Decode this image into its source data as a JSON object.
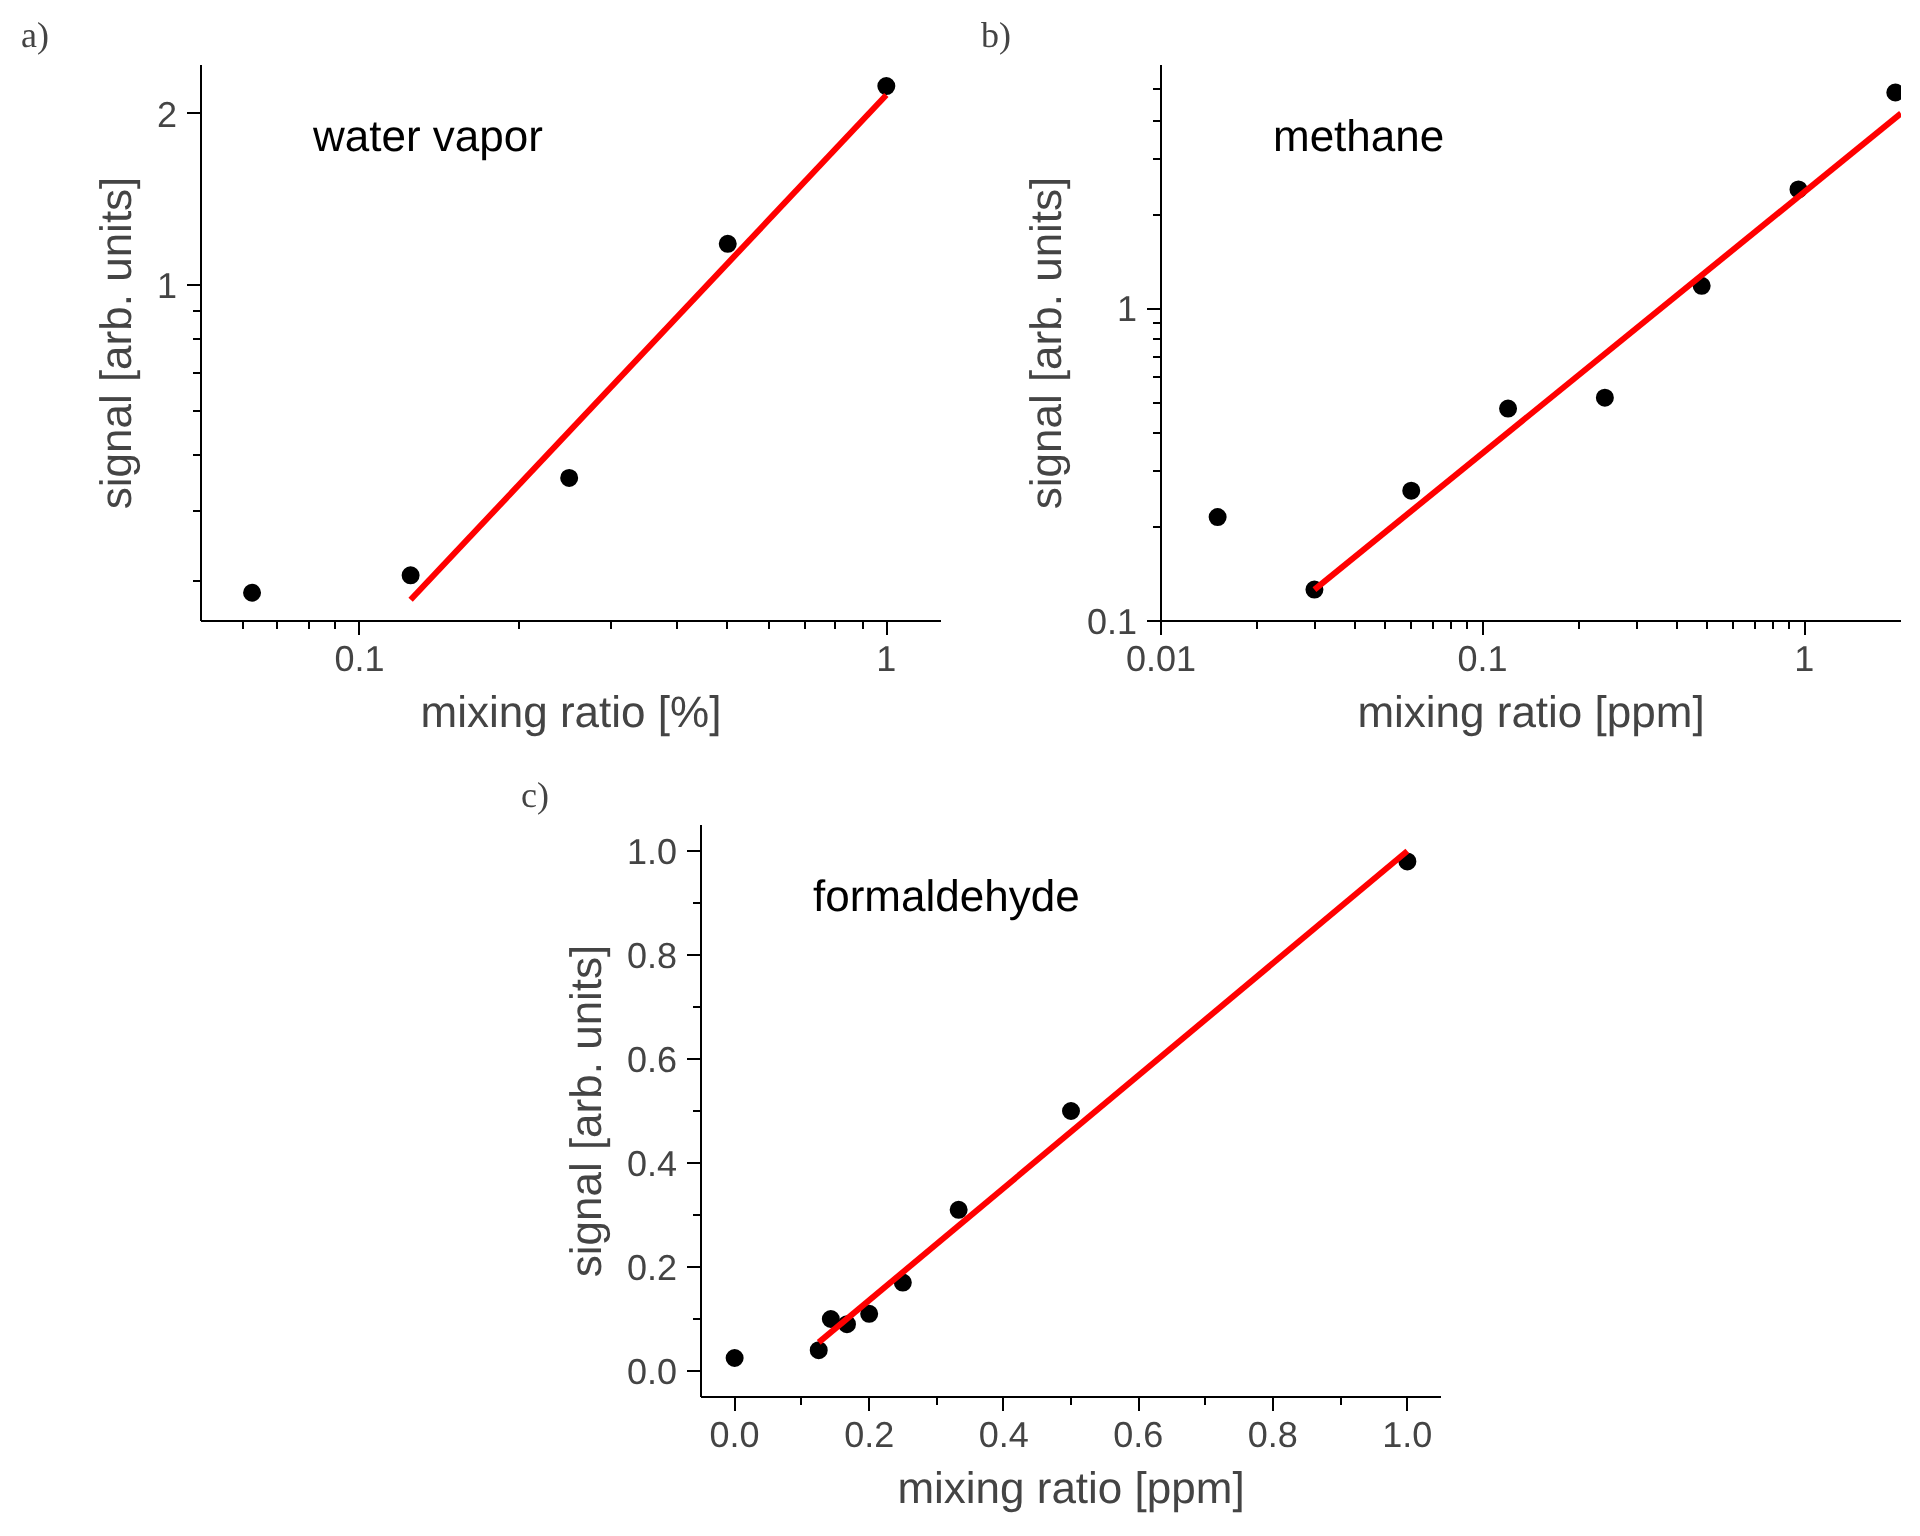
{
  "chart_data": [
    {
      "type": "scatter",
      "title": "a)",
      "xlabel": "mixing ratio [%]",
      "ylabel": "signal [arb. units]",
      "log": "xy",
      "grid": false,
      "annotations": [
        "water vapor"
      ],
      "xlim": [
        0.05,
        1.27
      ],
      "ylim": [
        0.255,
        2.44
      ],
      "xticks": [
        {
          "value": 0.06,
          "label": null
        },
        {
          "value": 0.07,
          "label": null
        },
        {
          "value": 0.08,
          "label": null
        },
        {
          "value": 0.09,
          "label": null
        },
        0.1,
        {
          "value": 0.2,
          "label": null
        },
        {
          "value": 0.3,
          "label": null
        },
        {
          "value": 0.4,
          "label": null
        },
        {
          "value": 0.5,
          "label": null
        },
        {
          "value": 0.6,
          "label": null
        },
        {
          "value": 0.7,
          "label": null
        },
        {
          "value": 0.8,
          "label": null
        },
        {
          "value": 0.9,
          "label": null
        },
        1
      ],
      "yticks": [
        {
          "value": 0.3,
          "label": null
        },
        {
          "value": 0.4,
          "label": null
        },
        {
          "value": 0.5,
          "label": null
        },
        {
          "value": 0.6,
          "label": null
        },
        {
          "value": 0.7,
          "label": null
        },
        {
          "value": 0.8,
          "label": null
        },
        {
          "value": 0.9,
          "label": null
        },
        1,
        2
      ],
      "series": [
        {
          "marker": "circle",
          "color": "#000000",
          "x": [
            0.0625,
            0.125,
            0.25,
            0.5,
            1
          ],
          "values": [
            0.286,
            0.307,
            0.456,
            1.18,
            2.24
          ]
        },
        {
          "type": "line",
          "marker": "none",
          "color": "#ff0000",
          "x": [
            0.125,
            1
          ],
          "values": [
            0.278,
            2.16
          ]
        }
      ]
    },
    {
      "type": "scatter",
      "title": "b)",
      "xlabel": "mixing ratio [ppm]",
      "ylabel": "signal [arb. units]",
      "log": "xy",
      "grid": false,
      "annotations": [
        "methane"
      ],
      "xlim": [
        0.01,
        2.0
      ],
      "ylim": [
        0.1,
        6
      ],
      "xticks": [
        0.01,
        {
          "value": 0.02,
          "label": null
        },
        {
          "value": 0.03,
          "label": null
        },
        {
          "value": 0.04,
          "label": null
        },
        {
          "value": 0.05,
          "label": null
        },
        {
          "value": 0.06,
          "label": null
        },
        {
          "value": 0.07,
          "label": null
        },
        {
          "value": 0.08,
          "label": null
        },
        {
          "value": 0.09,
          "label": null
        },
        0.1,
        {
          "value": 0.2,
          "label": null
        },
        {
          "value": 0.3,
          "label": null
        },
        {
          "value": 0.4,
          "label": null
        },
        {
          "value": 0.5,
          "label": null
        },
        {
          "value": 0.6,
          "label": null
        },
        {
          "value": 0.7,
          "label": null
        },
        {
          "value": 0.8,
          "label": null
        },
        {
          "value": 0.9,
          "label": null
        },
        1
      ],
      "yticks": [
        0.1,
        {
          "value": 0.2,
          "label": null
        },
        {
          "value": 0.3,
          "label": null
        },
        {
          "value": 0.4,
          "label": null
        },
        {
          "value": 0.5,
          "label": null
        },
        {
          "value": 0.6,
          "label": null
        },
        {
          "value": 0.7,
          "label": null
        },
        {
          "value": 0.8,
          "label": null
        },
        {
          "value": 0.9,
          "label": null
        },
        1,
        {
          "value": 2,
          "label": null
        },
        {
          "value": 3,
          "label": null
        },
        {
          "value": 4,
          "label": null
        },
        {
          "value": 5,
          "label": null
        }
      ],
      "series": [
        {
          "marker": "circle",
          "color": "#000000",
          "x": [
            0.015,
            0.03,
            0.06,
            0.12,
            0.24,
            0.48,
            0.96,
            1.92
          ],
          "values": [
            0.215,
            0.126,
            0.261,
            0.478,
            0.518,
            1.18,
            2.4,
            4.9
          ]
        },
        {
          "type": "line",
          "marker": "none",
          "color": "#ff0000",
          "x": [
            0.03,
            2.0
          ],
          "values": [
            0.126,
            4.2
          ]
        }
      ]
    },
    {
      "type": "scatter",
      "title": "c)",
      "xlabel": "mixing ratio [ppm]",
      "ylabel": "signal [arb. units]",
      "grid": false,
      "annotations": [
        "formaldehyde"
      ],
      "xlim": [
        -0.05,
        1.05
      ],
      "ylim": [
        -0.05,
        1.05
      ],
      "xticks": [
        {
          "value": 0.0,
          "label": "0.0"
        },
        {
          "value": 0.1,
          "label": null
        },
        {
          "value": 0.2,
          "label": "0.2"
        },
        {
          "value": 0.3,
          "label": null
        },
        {
          "value": 0.4,
          "label": "0.4"
        },
        {
          "value": 0.5,
          "label": null
        },
        {
          "value": 0.6,
          "label": "0.6"
        },
        {
          "value": 0.7,
          "label": null
        },
        {
          "value": 0.8,
          "label": "0.8"
        },
        {
          "value": 0.9,
          "label": null
        },
        {
          "value": 1.0,
          "label": "1.0"
        }
      ],
      "yticks": [
        {
          "value": 0.0,
          "label": "0.0"
        },
        {
          "value": 0.1,
          "label": null
        },
        {
          "value": 0.2,
          "label": "0.2"
        },
        {
          "value": 0.3,
          "label": null
        },
        {
          "value": 0.4,
          "label": "0.4"
        },
        {
          "value": 0.5,
          "label": null
        },
        {
          "value": 0.6,
          "label": "0.6"
        },
        {
          "value": 0.7,
          "label": null
        },
        {
          "value": 0.8,
          "label": "0.8"
        },
        {
          "value": 0.9,
          "label": null
        },
        {
          "value": 1.0,
          "label": "1.0"
        }
      ],
      "series": [
        {
          "marker": "circle",
          "color": "#000000",
          "x": [
            0.0,
            0.125,
            0.143,
            0.167,
            0.2,
            0.25,
            0.333,
            0.5,
            1.0
          ],
          "values": [
            0.025,
            0.04,
            0.1,
            0.09,
            0.11,
            0.17,
            0.31,
            0.5,
            0.98
          ]
        },
        {
          "type": "line",
          "marker": "none",
          "color": "#ff0000",
          "x": [
            0.125,
            1.0
          ],
          "values": [
            0.055,
            1.0
          ]
        }
      ]
    }
  ]
}
